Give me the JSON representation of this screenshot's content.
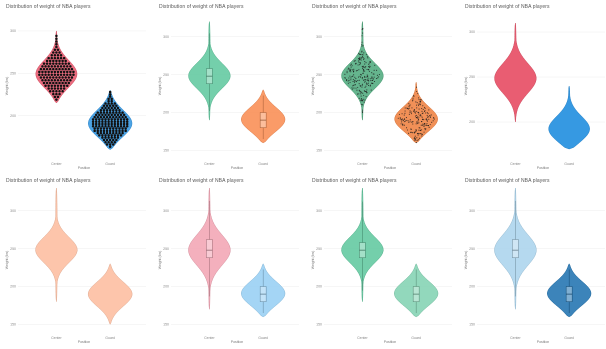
{
  "chart_data": [
    {
      "type": "violin",
      "title": "Distribution of weight of NBA players",
      "xlabel": "Position",
      "ylabel": "Weight (lbs)",
      "categories": [
        "Center",
        "Guard"
      ],
      "yticks": [
        "200",
        "250",
        "300"
      ],
      "ylim": [
        150,
        320
      ],
      "style": "dots",
      "colors": [
        "#e8546a",
        "#2b93e0"
      ],
      "series": [
        {
          "category": "Center",
          "min": 215,
          "q1": 238,
          "median": 248,
          "q3": 258,
          "max": 300
        },
        {
          "category": "Guard",
          "min": 160,
          "q1": 180,
          "median": 190,
          "q3": 200,
          "max": 230
        }
      ]
    },
    {
      "type": "violin",
      "title": "Distribution of weight of NBA players",
      "xlabel": "Position",
      "ylabel": "Weight (lbs)",
      "categories": [
        "Center",
        "Guard"
      ],
      "yticks": [
        "150",
        "200",
        "250",
        "300"
      ],
      "ylim": [
        140,
        330
      ],
      "style": "box",
      "colors": [
        "#5cc79c",
        "#f98a4d"
      ],
      "series": [
        {
          "category": "Center",
          "min": 190,
          "q1": 238,
          "median": 248,
          "q3": 258,
          "max": 320
        },
        {
          "category": "Guard",
          "min": 160,
          "q1": 180,
          "median": 190,
          "q3": 200,
          "max": 230
        }
      ]
    },
    {
      "type": "violin",
      "title": "Distribution of weight of NBA players",
      "xlabel": "Position",
      "ylabel": "Weight (lbs)",
      "categories": [
        "Center",
        "Guard"
      ],
      "yticks": [
        "150",
        "200",
        "250",
        "300"
      ],
      "ylim": [
        140,
        330
      ],
      "style": "jitter",
      "colors": [
        "#4aa87a",
        "#ef7d3a"
      ],
      "series": [
        {
          "category": "Center",
          "min": 190,
          "q1": 238,
          "median": 248,
          "q3": 258,
          "max": 320
        },
        {
          "category": "Guard",
          "min": 160,
          "q1": 180,
          "median": 190,
          "q3": 200,
          "max": 240
        }
      ]
    },
    {
      "type": "violin",
      "title": "Distribution of weight of NBA players",
      "xlabel": "Position",
      "ylabel": "Weight (lbs)",
      "categories": [
        "Center",
        "Guard"
      ],
      "yticks": [
        "200",
        "250",
        "300"
      ],
      "ylim": [
        160,
        320
      ],
      "style": "plain",
      "colors": [
        "#e8546a",
        "#2b93e0"
      ],
      "series": [
        {
          "category": "Center",
          "min": 200,
          "q1": 238,
          "median": 248,
          "q3": 258,
          "max": 310
        },
        {
          "category": "Guard",
          "min": 170,
          "q1": 182,
          "median": 190,
          "q3": 200,
          "max": 240
        }
      ]
    },
    {
      "type": "violin",
      "title": "Distribution of weight of NBA players",
      "xlabel": "Position",
      "ylabel": "Weight (lbs)",
      "categories": [
        "Center",
        "Guard"
      ],
      "yticks": [
        "150",
        "200",
        "250",
        "300"
      ],
      "ylim": [
        140,
        330
      ],
      "style": "plain",
      "colors": [
        "#fdc2a6",
        "#fdc2a6"
      ],
      "series": [
        {
          "category": "Center",
          "min": 180,
          "q1": 238,
          "median": 248,
          "q3": 258,
          "max": 330
        },
        {
          "category": "Guard",
          "min": 150,
          "q1": 180,
          "median": 190,
          "q3": 200,
          "max": 230
        }
      ]
    },
    {
      "type": "violin",
      "title": "Distribution of weight of NBA players",
      "xlabel": "Position",
      "ylabel": "Weight (lbs)",
      "categories": [
        "Center",
        "Guard"
      ],
      "yticks": [
        "150",
        "200",
        "250",
        "300"
      ],
      "ylim": [
        140,
        330
      ],
      "style": "box",
      "colors": [
        "#f2a2b2",
        "#94cef3"
      ],
      "series": [
        {
          "category": "Center",
          "min": 170,
          "q1": 238,
          "median": 248,
          "q3": 262,
          "max": 330
        },
        {
          "category": "Guard",
          "min": 160,
          "q1": 180,
          "median": 190,
          "q3": 200,
          "max": 230
        }
      ]
    },
    {
      "type": "violin",
      "title": "Distribution of weight of NBA players",
      "xlabel": "Position",
      "ylabel": "Weight (lbs)",
      "categories": [
        "Center",
        "Guard"
      ],
      "yticks": [
        "150",
        "200",
        "250",
        "300"
      ],
      "ylim": [
        140,
        330
      ],
      "style": "box",
      "colors": [
        "#5cc79c",
        "#7fd1b0"
      ],
      "series": [
        {
          "category": "Center",
          "min": 180,
          "q1": 238,
          "median": 248,
          "q3": 258,
          "max": 330
        },
        {
          "category": "Guard",
          "min": 160,
          "q1": 180,
          "median": 190,
          "q3": 200,
          "max": 230
        }
      ]
    },
    {
      "type": "violin",
      "title": "Distribution of weight of NBA players",
      "xlabel": "Position",
      "ylabel": "Weight (lbs)",
      "categories": [
        "Center",
        "Guard"
      ],
      "yticks": [
        "150",
        "200",
        "250",
        "300"
      ],
      "ylim": [
        140,
        330
      ],
      "style": "box",
      "colors": [
        "#a8d2ec",
        "#1a6fae"
      ],
      "series": [
        {
          "category": "Center",
          "min": 170,
          "q1": 238,
          "median": 248,
          "q3": 262,
          "max": 330
        },
        {
          "category": "Guard",
          "min": 160,
          "q1": 180,
          "median": 190,
          "q3": 200,
          "max": 230
        }
      ]
    }
  ]
}
